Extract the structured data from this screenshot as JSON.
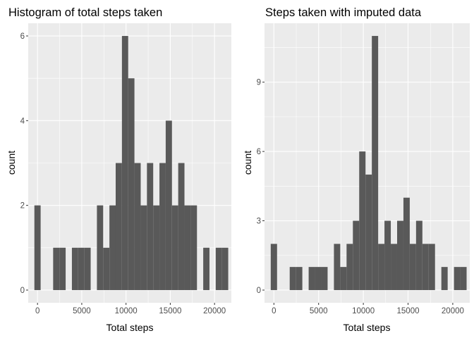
{
  "theme": {
    "panel_bg": "#EBEBEB",
    "grid_major": "#FFFFFF",
    "bar_fill": "#595959",
    "tick_text": "#4D4D4D",
    "tick_mark": "#333333"
  },
  "chart_data": [
    {
      "type": "bar",
      "title": "Histogram of total steps taken",
      "xlabel": "Total steps",
      "ylabel": "count",
      "bin_width": 706.5,
      "xlim": [
        -1050,
        21900
      ],
      "ylim": [
        -0.3,
        6.3
      ],
      "x_ticks": [
        0,
        5000,
        10000,
        15000,
        20000
      ],
      "x_tick_labels": [
        "0",
        "5000",
        "10000",
        "15000",
        "20000"
      ],
      "y_ticks": [
        0,
        2,
        4,
        6
      ],
      "y_tick_labels": [
        "0",
        "2",
        "4",
        "6"
      ],
      "bins": [
        {
          "x": 0,
          "count": 2
        },
        {
          "x": 2120,
          "count": 1
        },
        {
          "x": 2826,
          "count": 1
        },
        {
          "x": 4239,
          "count": 1
        },
        {
          "x": 4945,
          "count": 1
        },
        {
          "x": 5652,
          "count": 1
        },
        {
          "x": 7065,
          "count": 2
        },
        {
          "x": 7771,
          "count": 1
        },
        {
          "x": 8478,
          "count": 2
        },
        {
          "x": 9184,
          "count": 3
        },
        {
          "x": 9891,
          "count": 6
        },
        {
          "x": 10597,
          "count": 5
        },
        {
          "x": 11304,
          "count": 3
        },
        {
          "x": 12010,
          "count": 2
        },
        {
          "x": 12717,
          "count": 3
        },
        {
          "x": 13423,
          "count": 2
        },
        {
          "x": 14130,
          "count": 3
        },
        {
          "x": 14836,
          "count": 4
        },
        {
          "x": 15543,
          "count": 2
        },
        {
          "x": 16249,
          "count": 3
        },
        {
          "x": 16956,
          "count": 2
        },
        {
          "x": 17662,
          "count": 2
        },
        {
          "x": 19075,
          "count": 1
        },
        {
          "x": 20488,
          "count": 1
        },
        {
          "x": 21194,
          "count": 1
        }
      ]
    },
    {
      "type": "bar",
      "title": "Steps taken with imputed data",
      "xlabel": "Total steps",
      "ylabel": "count",
      "bin_width": 706.5,
      "xlim": [
        -1050,
        21900
      ],
      "ylim": [
        -0.55,
        11.55
      ],
      "x_ticks": [
        0,
        5000,
        10000,
        15000,
        20000
      ],
      "x_tick_labels": [
        "0",
        "5000",
        "10000",
        "15000",
        "20000"
      ],
      "y_ticks": [
        0,
        3,
        6,
        9
      ],
      "y_tick_labels": [
        "0",
        "3",
        "6",
        "9"
      ],
      "bins": [
        {
          "x": 0,
          "count": 2
        },
        {
          "x": 2120,
          "count": 1
        },
        {
          "x": 2826,
          "count": 1
        },
        {
          "x": 4239,
          "count": 1
        },
        {
          "x": 4945,
          "count": 1
        },
        {
          "x": 5652,
          "count": 1
        },
        {
          "x": 7065,
          "count": 2
        },
        {
          "x": 7771,
          "count": 1
        },
        {
          "x": 8478,
          "count": 2
        },
        {
          "x": 9184,
          "count": 3
        },
        {
          "x": 9891,
          "count": 6
        },
        {
          "x": 10597,
          "count": 5
        },
        {
          "x": 11304,
          "count": 11
        },
        {
          "x": 12010,
          "count": 2
        },
        {
          "x": 12717,
          "count": 3
        },
        {
          "x": 13423,
          "count": 2
        },
        {
          "x": 14130,
          "count": 3
        },
        {
          "x": 14836,
          "count": 4
        },
        {
          "x": 15543,
          "count": 2
        },
        {
          "x": 16249,
          "count": 3
        },
        {
          "x": 16956,
          "count": 2
        },
        {
          "x": 17662,
          "count": 2
        },
        {
          "x": 19075,
          "count": 1
        },
        {
          "x": 20488,
          "count": 1
        },
        {
          "x": 21194,
          "count": 1
        }
      ]
    }
  ]
}
